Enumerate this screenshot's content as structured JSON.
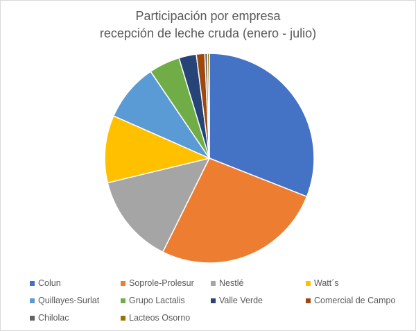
{
  "chart_data": {
    "type": "pie",
    "title": "Participación por empresa",
    "subtitle": "recepción de leche cruda (enero - julio)",
    "legend_position": "bottom",
    "categories": [
      "Colun",
      "Soprole-Prolesur",
      "Nestlé",
      "Watt´s",
      "Quillayes-Surlat",
      "Grupo Lactalis",
      "Valle Verde",
      "Comercial de Campo",
      "Chilolac",
      "Lacteos Osorno"
    ],
    "values": [
      31.0,
      26.4,
      13.9,
      10.4,
      8.9,
      4.8,
      2.7,
      1.3,
      0.4,
      0.3
    ],
    "colors": [
      "#4472c4",
      "#ed7d31",
      "#a5a5a5",
      "#ffc000",
      "#5b9bd5",
      "#70ad47",
      "#264478",
      "#9e480e",
      "#636363",
      "#997300"
    ]
  }
}
